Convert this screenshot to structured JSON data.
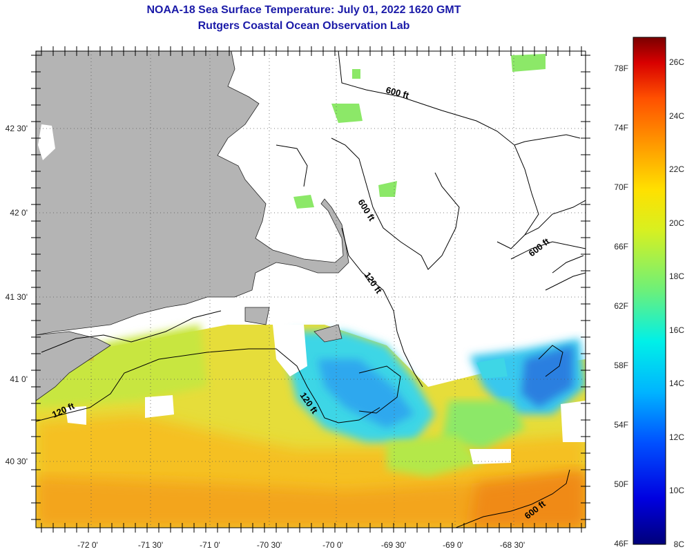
{
  "title": "NOAA-18 Sea Surface Temperature:  July 01, 2022 1620 GMT",
  "subtitle": "Rutgers Coastal Ocean Observation Lab",
  "latitude_labels": [
    "42 30'",
    "42 0'",
    "41 30'",
    "41 0'",
    "40 30'"
  ],
  "longitude_labels": [
    "-72 0'",
    "-71 30'",
    "-71 0'",
    "-70 30'",
    "-70 0'",
    "-69 30'",
    "-69 0'",
    "-68 30'"
  ],
  "contour_labels": [
    "600 ft",
    "600 ft",
    "600 ft",
    "120 ft",
    "120 ft",
    "120 ft",
    "600 ft"
  ],
  "colorbar": {
    "fahrenheit_labels": [
      "78F",
      "74F",
      "70F",
      "66F",
      "62F",
      "58F",
      "54F",
      "50F",
      "46F"
    ],
    "celsius_labels": [
      "26C",
      "24C",
      "22C",
      "20C",
      "18C",
      "16C",
      "14C",
      "12C",
      "10C",
      "8C"
    ],
    "range_c": [
      8,
      27
    ],
    "colors": [
      "#00007a",
      "#0000e0",
      "#0050ff",
      "#00b4ff",
      "#00f0e8",
      "#6cf07a",
      "#d8f020",
      "#ffe000",
      "#ffa000",
      "#ff5000",
      "#d80000",
      "#7a0000"
    ]
  },
  "colors": {
    "land": "#b4b4b4",
    "ocean_warm": "#f5b800",
    "ocean_mid": "#e2e23a",
    "ocean_cool": "#40d8e8",
    "ocean_cold": "#2c86e8",
    "cloud": "#ffffff",
    "title": "#1a1aa8"
  }
}
